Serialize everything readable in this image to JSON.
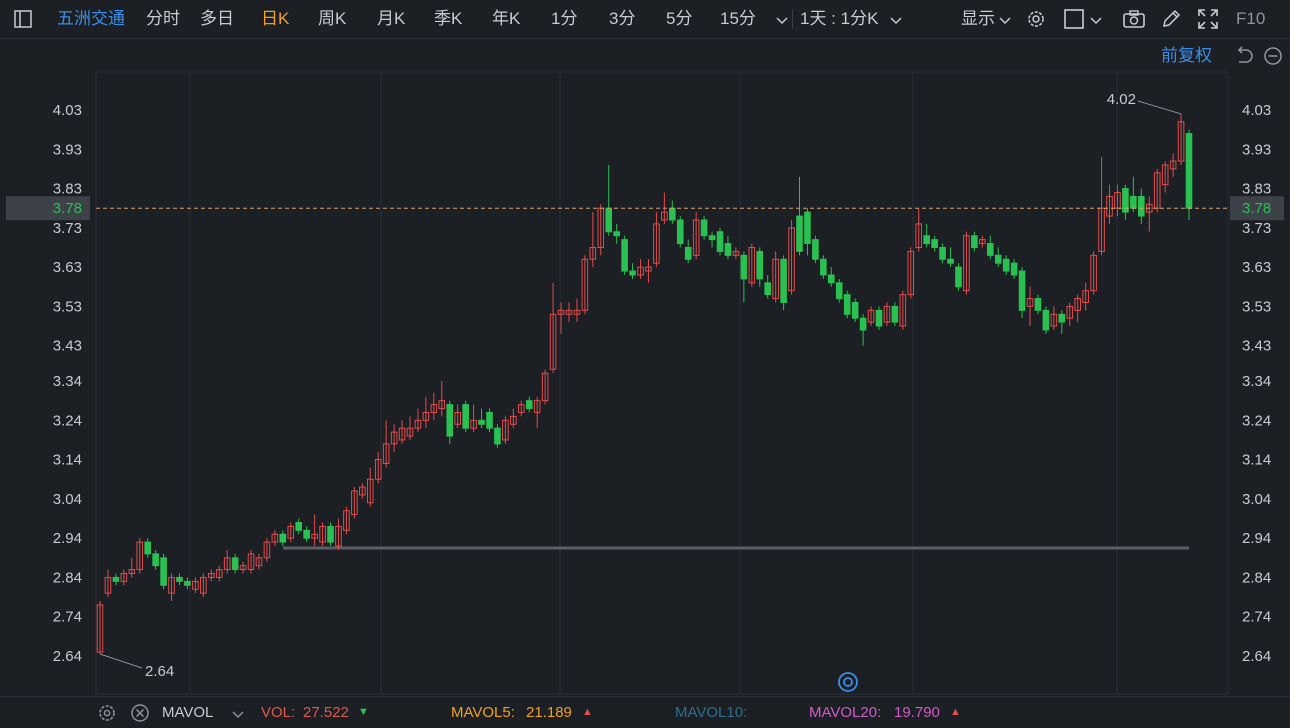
{
  "toolbar": {
    "stock_name": "五洲交通",
    "tabs": [
      "分时",
      "多日",
      "日K",
      "周K",
      "月K",
      "季K",
      "年K",
      "1分",
      "3分",
      "5分",
      "15分"
    ],
    "active_tab": "日K",
    "period_select": "1天 : 1分K",
    "display_label": "显示",
    "f10_label": "F10",
    "icons": [
      "sidebar-toggle-icon",
      "chevron-down-icon",
      "gear-icon",
      "square-icon",
      "camera-icon",
      "pencil-icon",
      "fullscreen-icon"
    ]
  },
  "subbar": {
    "adjust_label": "前复权"
  },
  "colors": {
    "up": "#e24c4c",
    "down": "#2ac152",
    "accent": "#f0a11f",
    "background": "#1c1f24",
    "grid": "#2a2e35"
  },
  "chart_data": {
    "type": "candlestick",
    "y_ticks": [
      "4.03",
      "3.93",
      "3.83",
      "3.73",
      "3.63",
      "3.53",
      "3.43",
      "3.34",
      "3.24",
      "3.14",
      "3.04",
      "2.94",
      "2.84",
      "2.74",
      "2.64"
    ],
    "ylim": [
      2.64,
      4.03
    ],
    "current_price": 3.78,
    "current_price_label": "3.78",
    "max_label": "4.02",
    "min_label": "2.64",
    "support_line": 2.915,
    "candles": [
      [
        2.65,
        2.77,
        2.645,
        2.78
      ],
      [
        2.8,
        2.84,
        2.79,
        2.86
      ],
      [
        2.84,
        2.83,
        2.82,
        2.85
      ],
      [
        2.83,
        2.85,
        2.82,
        2.86
      ],
      [
        2.85,
        2.86,
        2.84,
        2.89
      ],
      [
        2.86,
        2.93,
        2.85,
        2.94
      ],
      [
        2.93,
        2.9,
        2.89,
        2.94
      ],
      [
        2.9,
        2.87,
        2.86,
        2.91
      ],
      [
        2.89,
        2.82,
        2.81,
        2.9
      ],
      [
        2.8,
        2.84,
        2.78,
        2.85
      ],
      [
        2.84,
        2.83,
        2.82,
        2.85
      ],
      [
        2.83,
        2.82,
        2.81,
        2.84
      ],
      [
        2.81,
        2.83,
        2.8,
        2.84
      ],
      [
        2.8,
        2.84,
        2.79,
        2.85
      ],
      [
        2.84,
        2.85,
        2.83,
        2.86
      ],
      [
        2.84,
        2.86,
        2.83,
        2.87
      ],
      [
        2.86,
        2.89,
        2.85,
        2.91
      ],
      [
        2.89,
        2.86,
        2.85,
        2.9
      ],
      [
        2.86,
        2.87,
        2.85,
        2.88
      ],
      [
        2.86,
        2.9,
        2.85,
        2.91
      ],
      [
        2.87,
        2.89,
        2.86,
        2.9
      ],
      [
        2.89,
        2.93,
        2.88,
        2.94
      ],
      [
        2.93,
        2.95,
        2.92,
        2.96
      ],
      [
        2.95,
        2.93,
        2.92,
        2.96
      ],
      [
        2.94,
        2.97,
        2.93,
        2.98
      ],
      [
        2.98,
        2.96,
        2.95,
        2.99
      ],
      [
        2.96,
        2.94,
        2.93,
        2.97
      ],
      [
        2.94,
        2.95,
        2.92,
        3.0
      ],
      [
        2.93,
        2.97,
        2.92,
        2.98
      ],
      [
        2.97,
        2.93,
        2.92,
        2.98
      ],
      [
        2.92,
        2.97,
        2.91,
        2.99
      ],
      [
        2.96,
        3.01,
        2.95,
        3.02
      ],
      [
        3.0,
        3.06,
        2.99,
        3.07
      ],
      [
        3.05,
        3.07,
        3.04,
        3.08
      ],
      [
        3.03,
        3.09,
        3.02,
        3.12
      ],
      [
        3.09,
        3.14,
        3.08,
        3.16
      ],
      [
        3.13,
        3.18,
        3.12,
        3.24
      ],
      [
        3.18,
        3.21,
        3.16,
        3.23
      ],
      [
        3.19,
        3.22,
        3.18,
        3.24
      ],
      [
        3.2,
        3.22,
        3.19,
        3.25
      ],
      [
        3.22,
        3.24,
        3.21,
        3.27
      ],
      [
        3.24,
        3.26,
        3.22,
        3.3
      ],
      [
        3.26,
        3.28,
        3.24,
        3.31
      ],
      [
        3.27,
        3.29,
        3.25,
        3.34
      ],
      [
        3.28,
        3.2,
        3.18,
        3.29
      ],
      [
        3.23,
        3.26,
        3.22,
        3.28
      ],
      [
        3.28,
        3.22,
        3.21,
        3.29
      ],
      [
        3.22,
        3.24,
        3.21,
        3.28
      ],
      [
        3.24,
        3.23,
        3.22,
        3.27
      ],
      [
        3.26,
        3.22,
        3.21,
        3.27
      ],
      [
        3.22,
        3.18,
        3.17,
        3.23
      ],
      [
        3.19,
        3.24,
        3.18,
        3.25
      ],
      [
        3.23,
        3.25,
        3.22,
        3.27
      ],
      [
        3.26,
        3.28,
        3.25,
        3.29
      ],
      [
        3.29,
        3.27,
        3.26,
        3.3
      ],
      [
        3.26,
        3.29,
        3.22,
        3.3
      ],
      [
        3.29,
        3.36,
        3.28,
        3.37
      ],
      [
        3.37,
        3.51,
        3.36,
        3.59
      ],
      [
        3.51,
        3.52,
        3.46,
        3.54
      ],
      [
        3.51,
        3.52,
        3.49,
        3.54
      ],
      [
        3.51,
        3.52,
        3.49,
        3.55
      ],
      [
        3.52,
        3.65,
        3.51,
        3.66
      ],
      [
        3.65,
        3.68,
        3.63,
        3.77
      ],
      [
        3.68,
        3.78,
        3.66,
        3.79
      ],
      [
        3.78,
        3.72,
        3.71,
        3.89
      ],
      [
        3.72,
        3.71,
        3.69,
        3.74
      ],
      [
        3.7,
        3.62,
        3.61,
        3.71
      ],
      [
        3.62,
        3.61,
        3.6,
        3.64
      ],
      [
        3.61,
        3.63,
        3.6,
        3.65
      ],
      [
        3.62,
        3.63,
        3.59,
        3.65
      ],
      [
        3.64,
        3.74,
        3.63,
        3.77
      ],
      [
        3.75,
        3.77,
        3.74,
        3.82
      ],
      [
        3.78,
        3.75,
        3.74,
        3.8
      ],
      [
        3.75,
        3.69,
        3.68,
        3.76
      ],
      [
        3.68,
        3.65,
        3.64,
        3.7
      ],
      [
        3.66,
        3.75,
        3.65,
        3.77
      ],
      [
        3.75,
        3.71,
        3.7,
        3.76
      ],
      [
        3.71,
        3.7,
        3.68,
        3.72
      ],
      [
        3.72,
        3.67,
        3.66,
        3.73
      ],
      [
        3.69,
        3.66,
        3.65,
        3.71
      ],
      [
        3.66,
        3.67,
        3.65,
        3.68
      ],
      [
        3.66,
        3.6,
        3.54,
        3.67
      ],
      [
        3.59,
        3.68,
        3.58,
        3.69
      ],
      [
        3.67,
        3.6,
        3.58,
        3.68
      ],
      [
        3.59,
        3.56,
        3.55,
        3.61
      ],
      [
        3.55,
        3.65,
        3.54,
        3.67
      ],
      [
        3.65,
        3.54,
        3.52,
        3.66
      ],
      [
        3.57,
        3.73,
        3.56,
        3.75
      ],
      [
        3.76,
        3.67,
        3.66,
        3.86
      ],
      [
        3.77,
        3.69,
        3.66,
        3.78
      ],
      [
        3.7,
        3.65,
        3.64,
        3.71
      ],
      [
        3.65,
        3.61,
        3.6,
        3.66
      ],
      [
        3.61,
        3.59,
        3.58,
        3.63
      ],
      [
        3.59,
        3.55,
        3.54,
        3.6
      ],
      [
        3.56,
        3.51,
        3.5,
        3.57
      ],
      [
        3.54,
        3.5,
        3.49,
        3.55
      ],
      [
        3.5,
        3.47,
        3.43,
        3.51
      ],
      [
        3.49,
        3.52,
        3.48,
        3.53
      ],
      [
        3.52,
        3.48,
        3.47,
        3.53
      ],
      [
        3.49,
        3.53,
        3.48,
        3.54
      ],
      [
        3.53,
        3.49,
        3.48,
        3.54
      ],
      [
        3.48,
        3.56,
        3.47,
        3.57
      ],
      [
        3.56,
        3.67,
        3.55,
        3.68
      ],
      [
        3.68,
        3.74,
        3.67,
        3.78
      ],
      [
        3.71,
        3.69,
        3.68,
        3.74
      ],
      [
        3.7,
        3.68,
        3.67,
        3.71
      ],
      [
        3.68,
        3.65,
        3.64,
        3.69
      ],
      [
        3.65,
        3.64,
        3.63,
        3.68
      ],
      [
        3.63,
        3.58,
        3.57,
        3.64
      ],
      [
        3.57,
        3.71,
        3.56,
        3.72
      ],
      [
        3.71,
        3.68,
        3.67,
        3.72
      ],
      [
        3.69,
        3.7,
        3.68,
        3.71
      ],
      [
        3.69,
        3.66,
        3.65,
        3.71
      ],
      [
        3.66,
        3.64,
        3.63,
        3.68
      ],
      [
        3.65,
        3.62,
        3.61,
        3.66
      ],
      [
        3.64,
        3.61,
        3.6,
        3.65
      ],
      [
        3.62,
        3.52,
        3.5,
        3.63
      ],
      [
        3.53,
        3.55,
        3.48,
        3.58
      ],
      [
        3.55,
        3.52,
        3.51,
        3.56
      ],
      [
        3.52,
        3.47,
        3.46,
        3.53
      ],
      [
        3.48,
        3.51,
        3.47,
        3.53
      ],
      [
        3.51,
        3.49,
        3.46,
        3.52
      ],
      [
        3.5,
        3.53,
        3.48,
        3.54
      ],
      [
        3.52,
        3.55,
        3.49,
        3.56
      ],
      [
        3.54,
        3.57,
        3.52,
        3.59
      ],
      [
        3.57,
        3.66,
        3.56,
        3.67
      ],
      [
        3.67,
        3.78,
        3.66,
        3.91
      ],
      [
        3.76,
        3.81,
        3.74,
        3.84
      ],
      [
        3.78,
        3.82,
        3.76,
        3.84
      ],
      [
        3.83,
        3.77,
        3.75,
        3.84
      ],
      [
        3.81,
        3.78,
        3.77,
        3.86
      ],
      [
        3.81,
        3.76,
        3.74,
        3.83
      ],
      [
        3.77,
        3.79,
        3.72,
        3.81
      ],
      [
        3.78,
        3.87,
        3.77,
        3.88
      ],
      [
        3.84,
        3.89,
        3.82,
        3.9
      ],
      [
        3.88,
        3.9,
        3.86,
        3.92
      ],
      [
        3.9,
        4.0,
        3.89,
        4.02
      ],
      [
        3.97,
        3.78,
        3.75,
        3.98
      ]
    ]
  },
  "bottom": {
    "indicator_name": "MAVOL",
    "vol_label": "VOL:",
    "vol_value": "27.522",
    "vol_dir": "▼",
    "mavol5_label": "MAVOL5:",
    "mavol5_value": "21.189",
    "mavol5_dir": "▲",
    "mavol10_label": "MAVOL10:",
    "mavol20_label": "MAVOL20:",
    "mavol20_value": "19.790",
    "mavol20_dir": "▲"
  }
}
